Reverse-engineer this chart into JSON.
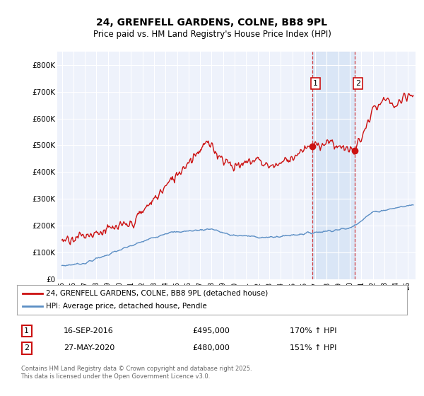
{
  "title1": "24, GRENFELL GARDENS, COLNE, BB8 9PL",
  "title2": "Price paid vs. HM Land Registry's House Price Index (HPI)",
  "ylim": [
    0,
    850000
  ],
  "yticks": [
    0,
    100000,
    200000,
    300000,
    400000,
    500000,
    600000,
    700000,
    800000
  ],
  "ytick_labels": [
    "£0",
    "£100K",
    "£200K",
    "£300K",
    "£400K",
    "£500K",
    "£600K",
    "£700K",
    "£800K"
  ],
  "hpi_color": "#5b8ec4",
  "price_color": "#cc1111",
  "marker1_x": 2016.72,
  "marker1_y": 495000,
  "marker2_x": 2020.41,
  "marker2_y": 480000,
  "annotation1_date": "16-SEP-2016",
  "annotation1_price": "£495,000",
  "annotation1_hpi": "170% ↑ HPI",
  "annotation2_date": "27-MAY-2020",
  "annotation2_price": "£480,000",
  "annotation2_hpi": "151% ↑ HPI",
  "legend_line1": "24, GRENFELL GARDENS, COLNE, BB8 9PL (detached house)",
  "legend_line2": "HPI: Average price, detached house, Pendle",
  "footer": "Contains HM Land Registry data © Crown copyright and database right 2025.\nThis data is licensed under the Open Government Licence v3.0.",
  "background_color": "#ffffff",
  "plot_bg_color": "#eef2fb",
  "shaded_color": "#d6e4f5",
  "shaded_region_start": 2016.72,
  "shaded_region_end": 2020.41,
  "xmin": 1994.6,
  "xmax": 2025.7
}
